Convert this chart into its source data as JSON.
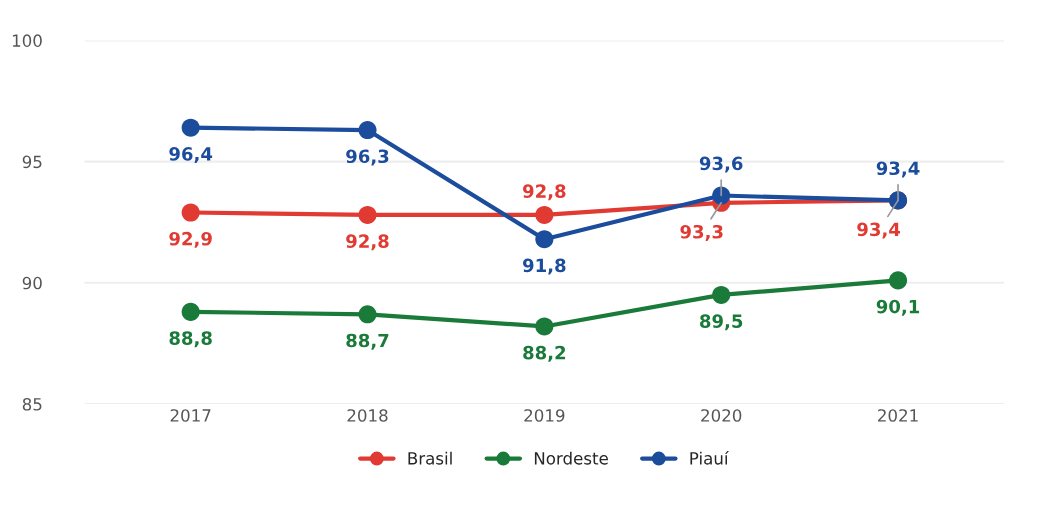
{
  "chart_data": {
    "type": "line",
    "categories": [
      "2017",
      "2018",
      "2019",
      "2020",
      "2021"
    ],
    "series": [
      {
        "name": "Brasil",
        "color": "#e03a32",
        "values": [
          92.9,
          92.8,
          92.8,
          93.3,
          93.4
        ],
        "value_labels": [
          "92,9",
          "92,8",
          "92,8",
          "93,3",
          "93,4"
        ]
      },
      {
        "name": "Nordeste",
        "color": "#1a7a3a",
        "values": [
          88.8,
          88.7,
          88.2,
          89.5,
          90.1
        ],
        "value_labels": [
          "88,8",
          "88,7",
          "88,2",
          "89,5",
          "90,1"
        ]
      },
      {
        "name": "Piauí",
        "color": "#1c4d9c",
        "values": [
          96.4,
          96.3,
          91.8,
          93.6,
          93.4
        ],
        "value_labels": [
          "96,4",
          "96,3",
          "91,8",
          "93,6",
          "93,4"
        ]
      }
    ],
    "ylim": [
      85,
      100
    ],
    "yticks": [
      85,
      90,
      95,
      100
    ],
    "grid": "y",
    "legend": "bottom",
    "marker": "circle",
    "line_style": "solid"
  }
}
